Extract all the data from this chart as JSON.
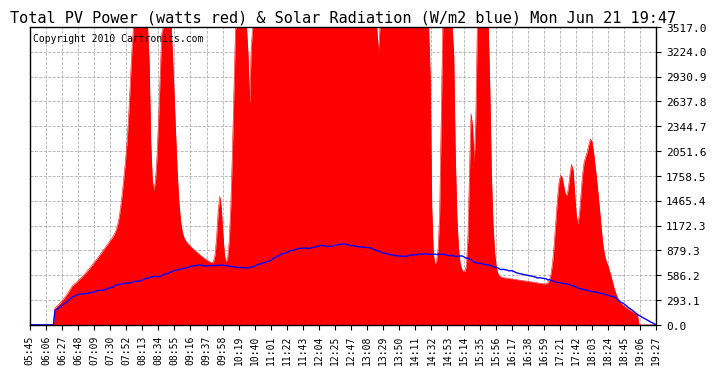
{
  "title": "Total PV Power (watts red) & Solar Radiation (W/m2 blue) Mon Jun 21 19:47",
  "copyright_text": "Copyright 2010 Cartronics.com",
  "y_max": 3517.0,
  "y_min": 0.0,
  "y_ticks": [
    0.0,
    293.1,
    586.2,
    879.3,
    1172.3,
    1465.4,
    1758.5,
    2051.6,
    2344.7,
    2637.8,
    2930.9,
    3224.0,
    3517.0
  ],
  "x_labels": [
    "05:45",
    "06:06",
    "06:27",
    "06:48",
    "07:09",
    "07:30",
    "07:52",
    "08:13",
    "08:34",
    "08:55",
    "09:16",
    "09:37",
    "09:58",
    "10:19",
    "10:40",
    "11:01",
    "11:22",
    "11:43",
    "12:04",
    "12:25",
    "12:47",
    "13:08",
    "13:29",
    "13:50",
    "14:11",
    "14:32",
    "14:53",
    "15:14",
    "15:35",
    "15:56",
    "16:17",
    "16:38",
    "16:59",
    "17:21",
    "17:42",
    "18:03",
    "18:24",
    "18:45",
    "19:06",
    "19:27"
  ],
  "background_color": "#ffffff",
  "plot_bg_color": "#ffffff",
  "grid_color": "#aaaaaa",
  "fill_color": "#ff0000",
  "line_color_solar": "#0000ff",
  "border_color": "#000000",
  "title_fontsize": 11,
  "copyright_fontsize": 7,
  "tick_fontsize": 7,
  "y_tick_fontsize": 8
}
